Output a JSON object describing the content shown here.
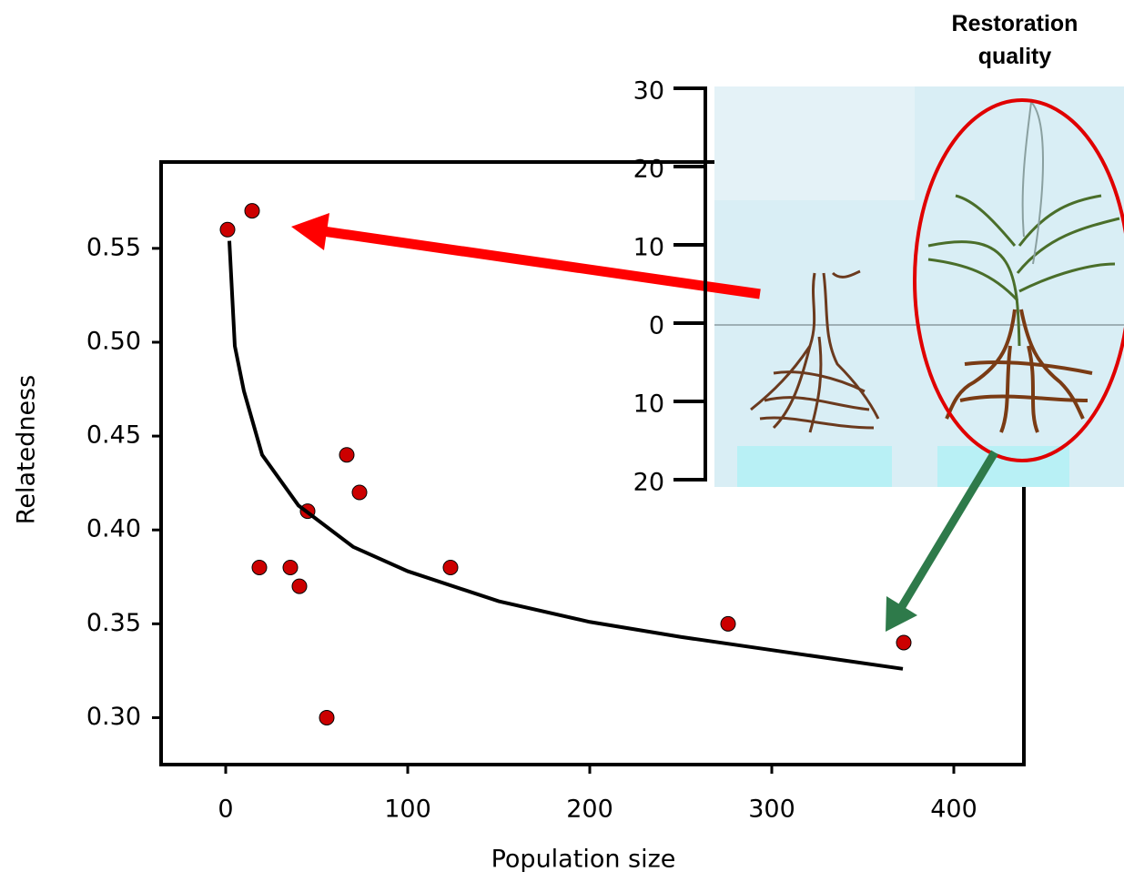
{
  "chart_data": [
    {
      "type": "scatter",
      "xlabel": "Population size",
      "ylabel": "Relatedness",
      "xlim": [
        -35.5,
        438.5
      ],
      "ylim": [
        0.275,
        0.596
      ],
      "xticks": [
        0,
        100,
        200,
        300,
        400
      ],
      "yticks": [
        {
          "value": 0.3,
          "label": "0.30"
        },
        0.35,
        {
          "value": 0.4,
          "label": "0.40"
        },
        0.45,
        {
          "value": 0.5,
          "label": "0.50"
        },
        0.55
      ],
      "series": [
        {
          "type": "scatter",
          "color": "#cc0000",
          "x": [
            1,
            14.5,
            18.5,
            35.5,
            40.5,
            45,
            55.5,
            66.5,
            73.5,
            123.5,
            276,
            372.5
          ],
          "values": [
            0.56,
            0.57,
            0.38,
            0.38,
            0.37,
            0.41,
            0.3,
            0.44,
            0.42,
            0.38,
            0.35,
            0.34
          ]
        },
        {
          "type": "line",
          "color": "#000000",
          "x": [
            2,
            5,
            10,
            20,
            40,
            70,
            100,
            150,
            200,
            250,
            300,
            372
          ],
          "values": [
            0.554,
            0.498,
            0.474,
            0.44,
            0.413,
            0.391,
            0.378,
            0.362,
            0.351,
            0.343,
            0.336,
            0.326
          ]
        }
      ]
    },
    {
      "type": "axis",
      "title": "Restoration quality",
      "ylim": [
        -20,
        30
      ],
      "yticks": [
        {
          "value": -20,
          "label": "20"
        },
        {
          "value": -10,
          "label": "10"
        },
        0,
        10,
        20,
        30
      ]
    }
  ]
}
